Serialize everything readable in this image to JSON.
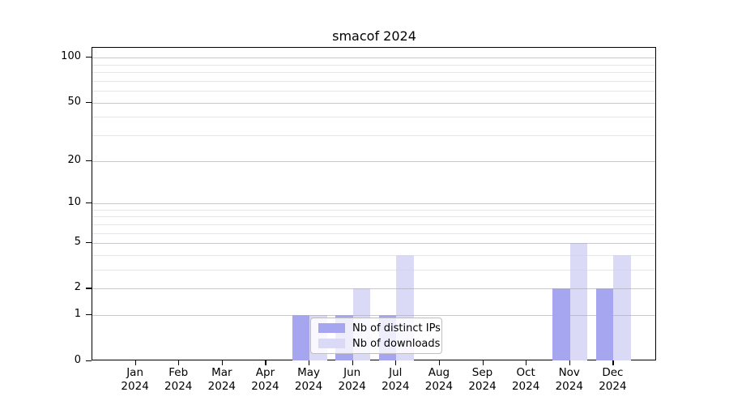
{
  "chart_data": {
    "type": "bar",
    "title": "smacof 2024",
    "categories": [
      "Jan",
      "Feb",
      "Mar",
      "Apr",
      "May",
      "Jun",
      "Jul",
      "Aug",
      "Sep",
      "Oct",
      "Nov",
      "Dec"
    ],
    "year_label": "2024",
    "series": [
      {
        "name": "Nb of distinct IPs",
        "color": "#a6a6f0",
        "values": [
          0,
          0,
          0,
          0,
          1,
          1,
          1,
          0,
          0,
          0,
          2,
          2
        ]
      },
      {
        "name": "Nb of downloads",
        "color": "#dadaf7",
        "values": [
          0,
          0,
          0,
          0,
          1,
          2,
          4,
          0,
          0,
          0,
          5,
          4
        ]
      }
    ],
    "y_axis": {
      "scale": "log1p",
      "ticks": [
        0,
        1,
        2,
        5,
        10,
        20,
        50,
        100
      ],
      "minor_gridlines": [
        3,
        4,
        6,
        7,
        8,
        9,
        30,
        40,
        60,
        70,
        80,
        90
      ],
      "range": [
        0,
        117
      ]
    },
    "x_axis": {
      "tick_count": 12
    },
    "grid": "on",
    "legend_position": "inside-bottom-center",
    "colors": {
      "background": "#ffffff",
      "spine": "#000000",
      "text": "#000000",
      "major_grid": "#c9c9cf",
      "minor_grid": "#e9e9ed",
      "legend_border": "#bfbfbf",
      "legend_background": "rgba(255,255,255,0.8)"
    }
  }
}
